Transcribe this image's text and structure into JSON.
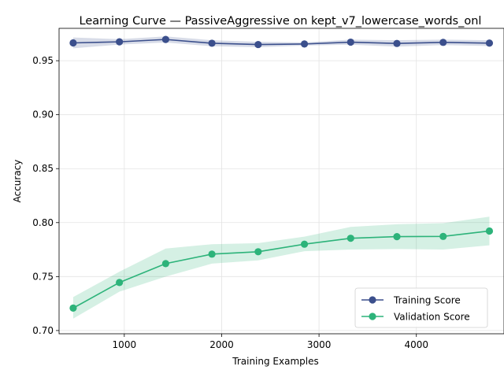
{
  "chart_data": {
    "type": "line",
    "title": "Learning Curve — PassiveAggressive on kept_v7_lowercase_words_onl",
    "xlabel": "Training Examples",
    "ylabel": "Accuracy",
    "xlim": [
      330,
      4900
    ],
    "ylim": [
      0.697,
      0.98
    ],
    "x_ticks": [
      1000,
      2000,
      3000,
      4000
    ],
    "y_ticks": [
      0.7,
      0.75,
      0.8,
      0.85,
      0.9,
      0.95
    ],
    "y_tick_labels": [
      "0.70",
      "0.75",
      "0.80",
      "0.85",
      "0.90",
      "0.95"
    ],
    "grid": true,
    "legend_position": "lower-right",
    "x": [
      475,
      950,
      1425,
      1900,
      2375,
      2850,
      3325,
      3800,
      4275,
      4750
    ],
    "series": [
      {
        "name": "Training Score",
        "color": "#3b4f8c",
        "values": [
          0.9665,
          0.9675,
          0.9697,
          0.9662,
          0.965,
          0.9655,
          0.9672,
          0.966,
          0.967,
          0.9663
        ],
        "band_upper": [
          0.9715,
          0.97,
          0.9725,
          0.969,
          0.9675,
          0.967,
          0.9695,
          0.969,
          0.9695,
          0.969
        ],
        "band_lower": [
          0.9615,
          0.965,
          0.9669,
          0.9634,
          0.9625,
          0.964,
          0.9649,
          0.963,
          0.9645,
          0.9636
        ]
      },
      {
        "name": "Validation Score",
        "color": "#2db37a",
        "values": [
          0.7208,
          0.7445,
          0.762,
          0.7708,
          0.773,
          0.78,
          0.7855,
          0.787,
          0.7872,
          0.7922
        ],
        "band_upper": [
          0.731,
          0.7545,
          0.776,
          0.78,
          0.781,
          0.787,
          0.796,
          0.7985,
          0.7995,
          0.8055
        ],
        "band_lower": [
          0.711,
          0.736,
          0.75,
          0.762,
          0.765,
          0.7735,
          0.775,
          0.7755,
          0.775,
          0.779
        ]
      }
    ]
  }
}
